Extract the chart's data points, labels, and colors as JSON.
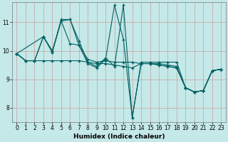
{
  "xlabel": "Humidex (Indice chaleur)",
  "bg_color": "#c5e8e8",
  "plot_bg_color": "#c5e8e8",
  "line_color": "#006060",
  "grid_color": "#c8a0a0",
  "xlim": [
    -0.5,
    23.5
  ],
  "ylim": [
    7.5,
    11.7
  ],
  "yticks": [
    8,
    9,
    10,
    11
  ],
  "xticks": [
    0,
    1,
    2,
    3,
    4,
    5,
    6,
    7,
    8,
    9,
    10,
    11,
    12,
    13,
    14,
    15,
    16,
    17,
    18,
    19,
    20,
    21,
    22,
    23
  ],
  "series": [
    {
      "x": [
        0,
        1,
        2,
        3,
        4,
        5,
        6,
        7,
        8,
        9,
        10,
        11,
        12,
        13,
        14,
        15,
        16,
        17,
        18,
        19,
        20,
        21,
        22,
        23
      ],
      "y": [
        9.9,
        9.65,
        9.65,
        10.5,
        9.95,
        11.1,
        11.1,
        10.35,
        9.6,
        9.45,
        9.75,
        9.45,
        11.6,
        7.65,
        9.6,
        9.6,
        9.6,
        9.6,
        9.6,
        8.7,
        8.55,
        8.6,
        9.3,
        9.35
      ]
    },
    {
      "x": [
        0,
        1,
        2,
        3,
        4,
        5,
        6,
        7,
        8,
        9,
        10,
        11,
        12,
        13,
        14,
        15,
        16,
        17,
        18,
        19,
        20,
        21,
        22,
        23
      ],
      "y": [
        9.9,
        9.65,
        9.65,
        10.5,
        9.95,
        11.05,
        11.1,
        10.2,
        9.55,
        9.4,
        9.7,
        11.6,
        10.4,
        7.65,
        9.55,
        9.55,
        9.55,
        9.5,
        9.45,
        8.7,
        8.55,
        8.6,
        9.3,
        9.35
      ]
    },
    {
      "x": [
        0,
        3,
        4,
        5,
        6,
        7,
        8,
        9,
        10,
        11,
        12,
        13,
        14,
        15,
        16,
        17,
        18,
        19,
        20,
        21,
        22,
        23
      ],
      "y": [
        9.9,
        10.5,
        10.0,
        11.05,
        10.25,
        10.2,
        9.7,
        9.6,
        9.65,
        9.6,
        9.6,
        9.6,
        9.55,
        9.55,
        9.5,
        9.45,
        9.4,
        8.7,
        8.55,
        8.6,
        9.3,
        9.35
      ]
    },
    {
      "x": [
        0,
        1,
        2,
        3,
        4,
        5,
        6,
        7,
        8,
        9,
        10,
        11,
        12,
        13,
        14,
        15,
        16,
        17,
        18,
        19,
        20,
        21,
        22,
        23
      ],
      "y": [
        9.9,
        9.65,
        9.65,
        9.65,
        9.65,
        9.65,
        9.65,
        9.65,
        9.6,
        9.55,
        9.55,
        9.5,
        9.45,
        9.4,
        9.55,
        9.55,
        9.5,
        9.45,
        9.4,
        8.7,
        8.55,
        8.6,
        9.3,
        9.35
      ]
    }
  ]
}
